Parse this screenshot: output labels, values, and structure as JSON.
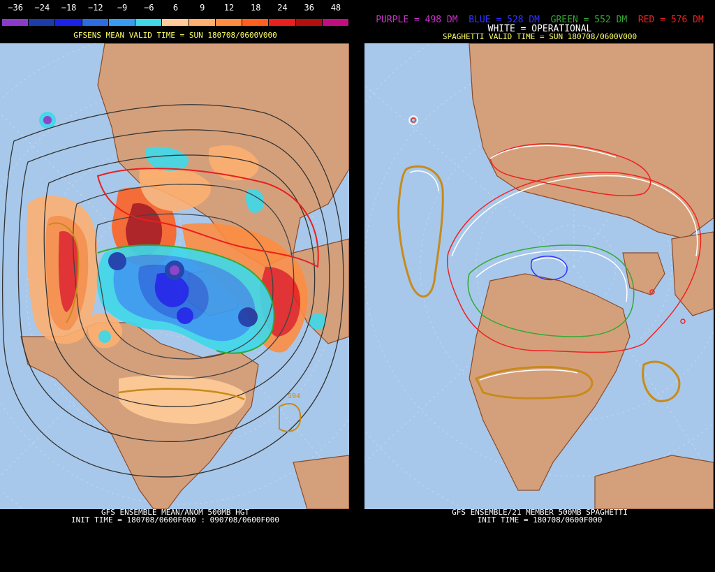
{
  "left_panel": {
    "scale_labels": [
      "−36",
      "−24",
      "−18",
      "−12",
      "−9",
      "−6",
      "6",
      "9",
      "12",
      "18",
      "24",
      "36",
      "48"
    ],
    "scale_colors": [
      "#8a3cc8",
      "#1c3ca8",
      "#1e22e8",
      "#2c6ee0",
      "#3a9cf0",
      "#40d8e8",
      "#ffcc99",
      "#ffb070",
      "#ff8c40",
      "#ff6020",
      "#e8201e",
      "#b01010",
      "#c01080"
    ],
    "valid_time": "GFSENS MEAN VALID TIME = SUN 180708/0600V000",
    "footer_line1": "GFS ENSEMBLE MEAN/ANOM 500MB HGT",
    "footer_line2": "INIT TIME = 180708/0600F000 : 090708/0600F000",
    "contour_label": "594"
  },
  "right_panel": {
    "legend_purple": "PURPLE = 498 DM",
    "legend_blue": "BLUE = 528 DM",
    "legend_green": "GREEN = 552 DM",
    "legend_red": "RED = 576 DM",
    "legend_white": "WHITE = OPERATIONAL",
    "valid_time": "SPAGHETTI VALID TIME = SUN 180708/0600V000",
    "footer_line1": "GFS ENSEMBLE/21 MEMBER 500MB SPAGHETTI",
    "footer_line2": "INIT TIME = 180708/0600F000"
  },
  "colors": {
    "ocean": "#a7c8ea",
    "land": "#d4a07c",
    "border": "#8b4a2a",
    "purple": "#cc33cc",
    "blue": "#3333ff",
    "green": "#33aa33",
    "red": "#ee2222",
    "white": "#ffffff",
    "yellow": "#ffff66"
  }
}
